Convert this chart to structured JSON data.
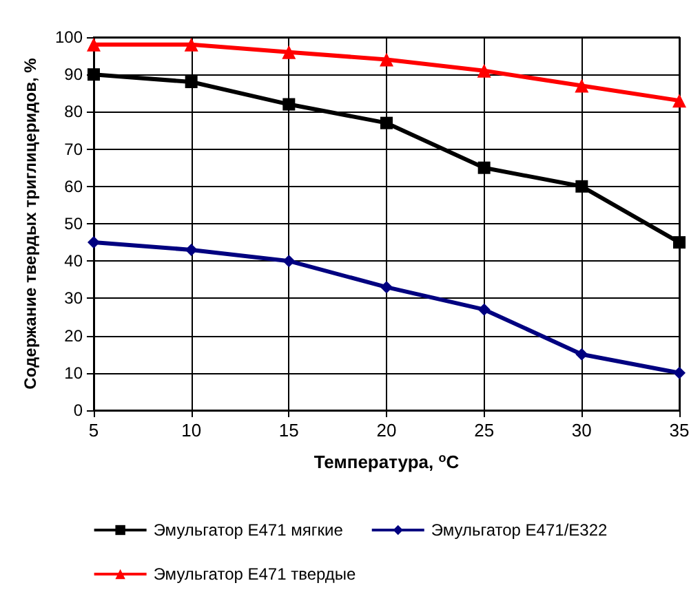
{
  "chart_data": {
    "type": "line",
    "xlabel": "Температура, $^{o}$C",
    "ylabel": "Содержание твердых триглицеридов, %",
    "x": [
      5,
      10,
      15,
      20,
      25,
      30,
      35
    ],
    "series": [
      {
        "name": "Эмульгатор Е471 мягкие",
        "color": "#000000",
        "marker": "square",
        "values": [
          90,
          88,
          82,
          77,
          65,
          60,
          45
        ]
      },
      {
        "name": "Эмульгатор Е471/Е322",
        "color": "#000080",
        "marker": "diamond",
        "values": [
          45,
          43,
          40,
          33,
          27,
          15,
          10
        ]
      },
      {
        "name": "Эмульгатор Е471 твердые",
        "color": "#ff0000",
        "marker": "triangle",
        "values": [
          98,
          98,
          96,
          94,
          91,
          87,
          83
        ]
      }
    ],
    "xlim": [
      5,
      35
    ],
    "xticks": [
      5,
      10,
      15,
      20,
      25,
      30,
      35
    ],
    "ylim": [
      0,
      100
    ],
    "yticks": [
      0,
      10,
      20,
      30,
      40,
      50,
      60,
      70,
      80,
      90,
      100
    ],
    "grid": true,
    "legend": "bottom",
    "line_style": "solid"
  }
}
